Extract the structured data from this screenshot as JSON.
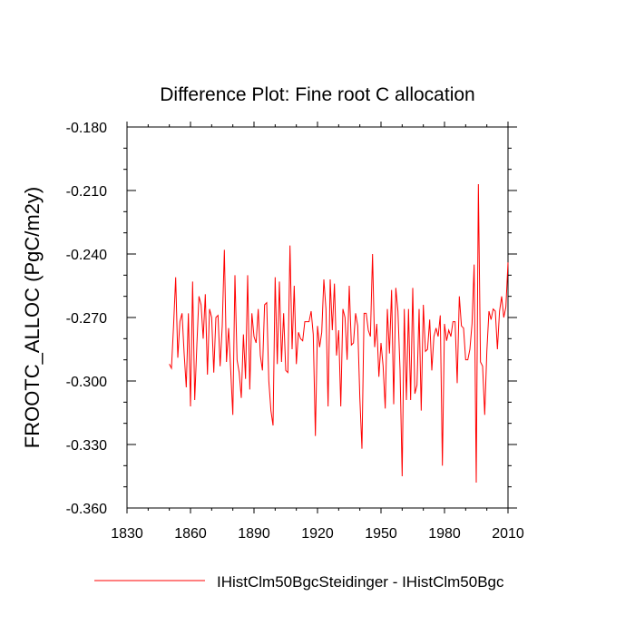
{
  "chart_data": {
    "type": "line",
    "title": "Difference Plot: Fine root C allocation",
    "ylabel": "FROOTC_ALLOC  (PgC/m2y)",
    "xlabel": "",
    "xlim": [
      1830,
      2010
    ],
    "ylim": [
      -0.36,
      -0.18
    ],
    "xticks": [
      1830,
      1860,
      1890,
      1920,
      1950,
      1980,
      2010
    ],
    "yticks": [
      -0.36,
      -0.33,
      -0.3,
      -0.27,
      -0.24,
      -0.21,
      -0.18
    ],
    "xtick_labels": [
      "1830",
      "1860",
      "1890",
      "1920",
      "1950",
      "1980",
      "2010"
    ],
    "ytick_labels": [
      "-0.360",
      "-0.330",
      "-0.300",
      "-0.270",
      "-0.240",
      "-0.210",
      "-0.180"
    ],
    "grid": false,
    "legend_position": "bottom",
    "series": [
      {
        "name": "IHistClm50BgcSteidinger - IHistClm50Bgc",
        "color": "#ff0000",
        "x": [
          1850,
          1851,
          1852,
          1853,
          1854,
          1855,
          1856,
          1857,
          1858,
          1859,
          1860,
          1861,
          1862,
          1863,
          1864,
          1865,
          1866,
          1867,
          1868,
          1869,
          1870,
          1871,
          1872,
          1873,
          1874,
          1875,
          1876,
          1877,
          1878,
          1879,
          1880,
          1881,
          1882,
          1883,
          1884,
          1885,
          1886,
          1887,
          1888,
          1889,
          1890,
          1891,
          1892,
          1893,
          1894,
          1895,
          1896,
          1897,
          1898,
          1899,
          1900,
          1901,
          1902,
          1903,
          1904,
          1905,
          1906,
          1907,
          1908,
          1909,
          1910,
          1911,
          1912,
          1913,
          1914,
          1915,
          1916,
          1917,
          1918,
          1919,
          1920,
          1921,
          1922,
          1923,
          1924,
          1925,
          1926,
          1927,
          1928,
          1929,
          1930,
          1931,
          1932,
          1933,
          1934,
          1935,
          1936,
          1937,
          1938,
          1939,
          1940,
          1941,
          1942,
          1943,
          1944,
          1945,
          1946,
          1947,
          1948,
          1949,
          1950,
          1951,
          1952,
          1953,
          1954,
          1955,
          1956,
          1957,
          1958,
          1959,
          1960,
          1961,
          1962,
          1963,
          1964,
          1965,
          1966,
          1967,
          1968,
          1969,
          1970,
          1971,
          1972,
          1973,
          1974,
          1975,
          1976,
          1977,
          1978,
          1979,
          1980,
          1981,
          1982,
          1983,
          1984,
          1985,
          1986,
          1987,
          1988,
          1989,
          1990,
          1991,
          1992,
          1993,
          1994,
          1995,
          1996,
          1997,
          1998,
          1999,
          2000,
          2001,
          2002,
          2003,
          2004,
          2005,
          2006,
          2007,
          2008,
          2009,
          2010
        ],
        "y": [
          -0.292,
          -0.294,
          -0.274,
          -0.251,
          -0.289,
          -0.272,
          -0.268,
          -0.287,
          -0.303,
          -0.268,
          -0.312,
          -0.253,
          -0.309,
          -0.283,
          -0.26,
          -0.264,
          -0.28,
          -0.259,
          -0.297,
          -0.266,
          -0.27,
          -0.296,
          -0.27,
          -0.269,
          -0.293,
          -0.274,
          -0.238,
          -0.291,
          -0.275,
          -0.295,
          -0.316,
          -0.25,
          -0.29,
          -0.296,
          -0.308,
          -0.278,
          -0.299,
          -0.25,
          -0.304,
          -0.268,
          -0.279,
          -0.282,
          -0.266,
          -0.288,
          -0.295,
          -0.264,
          -0.263,
          -0.3,
          -0.314,
          -0.321,
          -0.251,
          -0.292,
          -0.253,
          -0.291,
          -0.268,
          -0.295,
          -0.296,
          -0.236,
          -0.285,
          -0.255,
          -0.292,
          -0.277,
          -0.28,
          -0.281,
          -0.272,
          -0.272,
          -0.272,
          -0.267,
          -0.278,
          -0.326,
          -0.274,
          -0.284,
          -0.277,
          -0.252,
          -0.266,
          -0.312,
          -0.252,
          -0.276,
          -0.254,
          -0.288,
          -0.276,
          -0.312,
          -0.266,
          -0.27,
          -0.29,
          -0.255,
          -0.283,
          -0.282,
          -0.268,
          -0.274,
          -0.308,
          -0.332,
          -0.268,
          -0.268,
          -0.276,
          -0.279,
          -0.24,
          -0.284,
          -0.273,
          -0.298,
          -0.282,
          -0.293,
          -0.313,
          -0.266,
          -0.287,
          -0.257,
          -0.311,
          -0.256,
          -0.267,
          -0.295,
          -0.345,
          -0.266,
          -0.309,
          -0.266,
          -0.309,
          -0.256,
          -0.306,
          -0.302,
          -0.266,
          -0.314,
          -0.264,
          -0.286,
          -0.285,
          -0.271,
          -0.295,
          -0.279,
          -0.275,
          -0.279,
          -0.269,
          -0.34,
          -0.273,
          -0.281,
          -0.276,
          -0.279,
          -0.272,
          -0.272,
          -0.301,
          -0.26,
          -0.274,
          -0.275,
          -0.29,
          -0.29,
          -0.285,
          -0.273,
          -0.245,
          -0.348,
          -0.207,
          -0.291,
          -0.293,
          -0.316,
          -0.286,
          -0.267,
          -0.271,
          -0.266,
          -0.267,
          -0.285,
          -0.267,
          -0.26,
          -0.27,
          -0.265,
          -0.244
        ]
      }
    ]
  }
}
